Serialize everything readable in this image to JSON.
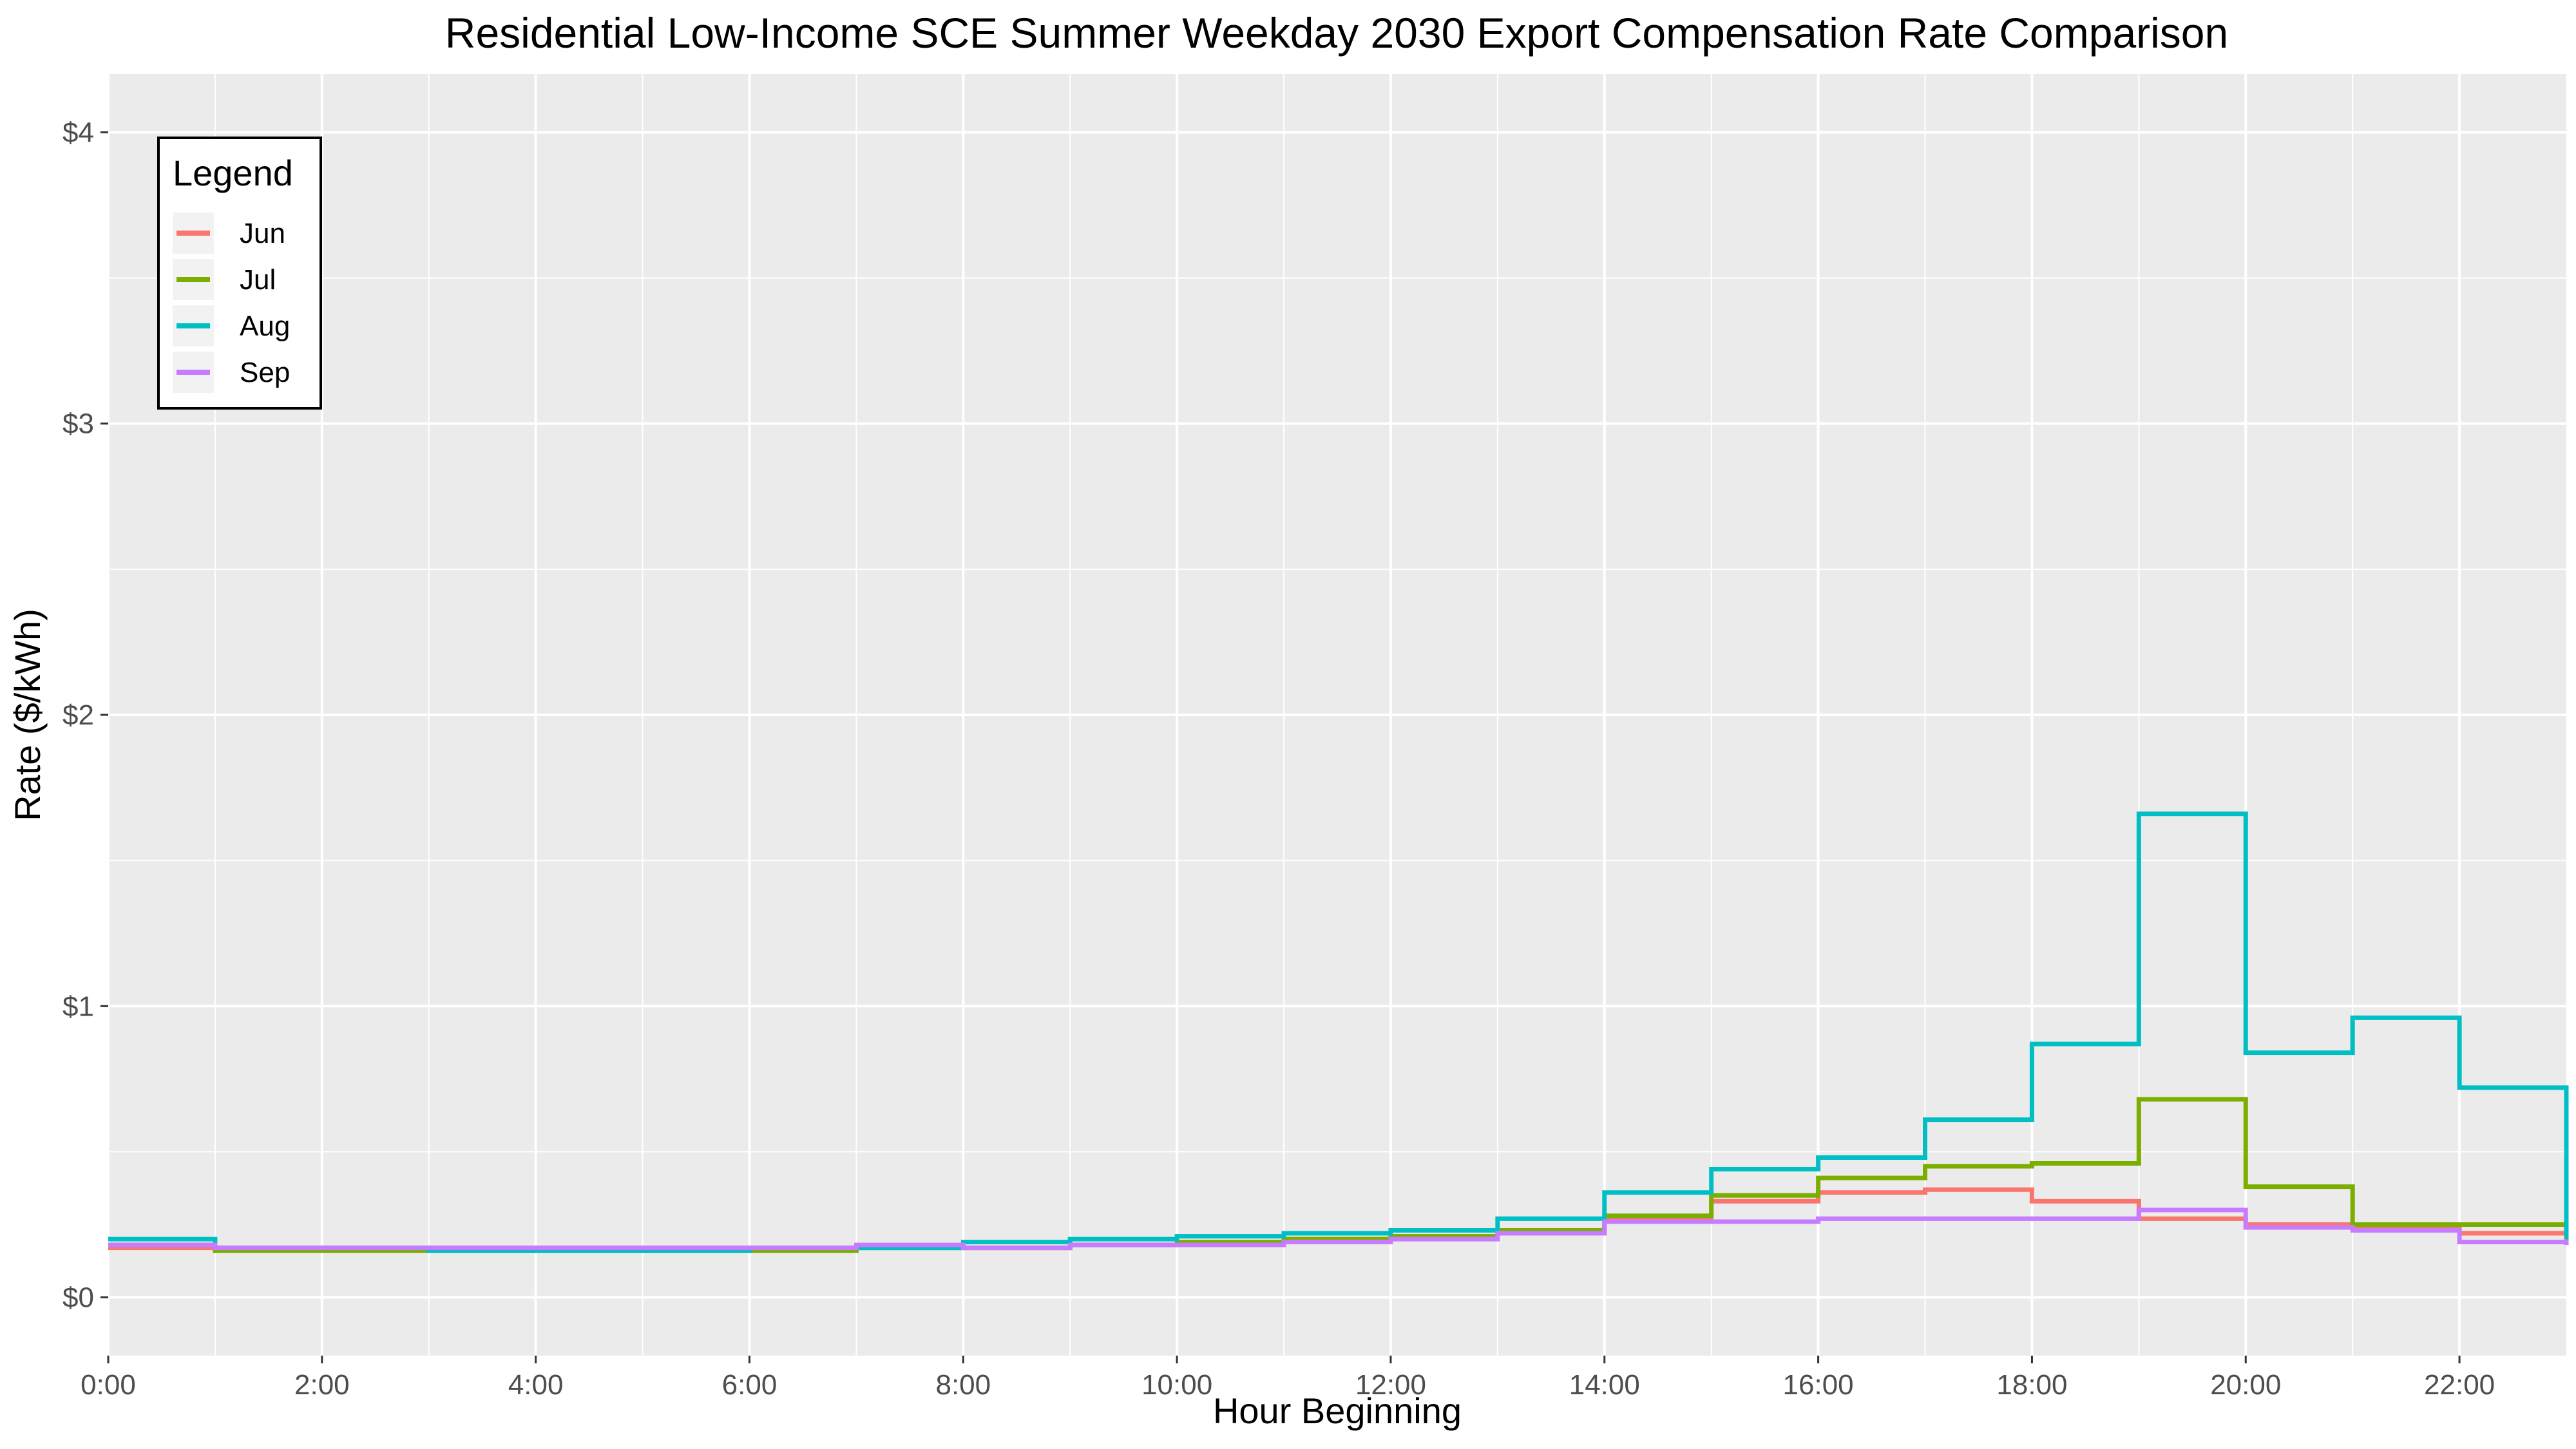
{
  "chart_data": {
    "type": "line",
    "step": true,
    "title": "Residential Low-Income SCE Summer Weekday 2030 Export Compensation Rate Comparison",
    "xlabel": "Hour Beginning",
    "ylabel": "Rate ($/kWh)",
    "xlim": [
      0,
      23
    ],
    "ylim": [
      -0.2,
      4.2
    ],
    "x_ticks": [
      0,
      2,
      4,
      6,
      8,
      10,
      12,
      14,
      16,
      18,
      20,
      22
    ],
    "x_tick_labels": [
      "0:00",
      "2:00",
      "4:00",
      "6:00",
      "8:00",
      "10:00",
      "12:00",
      "14:00",
      "16:00",
      "18:00",
      "20:00",
      "22:00"
    ],
    "y_ticks": [
      0,
      1,
      2,
      3,
      4
    ],
    "y_tick_labels": [
      "$0",
      "$1",
      "$2",
      "$3",
      "$4"
    ],
    "grid": true,
    "legend": {
      "title": "Legend",
      "position": "top-left"
    },
    "x": [
      0,
      1,
      2,
      3,
      4,
      5,
      6,
      7,
      8,
      9,
      10,
      11,
      12,
      13,
      14,
      15,
      16,
      17,
      18,
      19,
      20,
      21,
      22,
      23
    ],
    "series": [
      {
        "name": "Jun",
        "color": "#F8766D",
        "values": [
          0.17,
          0.16,
          0.16,
          0.16,
          0.16,
          0.16,
          0.16,
          0.17,
          0.17,
          0.18,
          0.19,
          0.2,
          0.21,
          0.23,
          0.27,
          0.33,
          0.36,
          0.37,
          0.33,
          0.27,
          0.25,
          0.24,
          0.22,
          0.19
        ]
      },
      {
        "name": "Jul",
        "color": "#7CAE00",
        "values": [
          0.18,
          0.16,
          0.16,
          0.16,
          0.16,
          0.16,
          0.16,
          0.17,
          0.17,
          0.18,
          0.19,
          0.2,
          0.21,
          0.23,
          0.28,
          0.35,
          0.41,
          0.45,
          0.46,
          0.68,
          0.38,
          0.25,
          0.25,
          0.2
        ]
      },
      {
        "name": "Aug",
        "color": "#00BFC4",
        "values": [
          0.2,
          0.17,
          0.17,
          0.16,
          0.16,
          0.16,
          0.17,
          0.17,
          0.19,
          0.2,
          0.21,
          0.22,
          0.23,
          0.27,
          0.36,
          0.44,
          0.48,
          0.61,
          0.87,
          1.66,
          0.84,
          0.96,
          0.72,
          0.2
        ]
      },
      {
        "name": "Sep",
        "color": "#C77CFF",
        "values": [
          0.18,
          0.17,
          0.17,
          0.17,
          0.17,
          0.17,
          0.17,
          0.18,
          0.17,
          0.18,
          0.18,
          0.19,
          0.2,
          0.22,
          0.26,
          0.26,
          0.27,
          0.27,
          0.27,
          0.3,
          0.24,
          0.23,
          0.19,
          0.18
        ]
      }
    ]
  }
}
